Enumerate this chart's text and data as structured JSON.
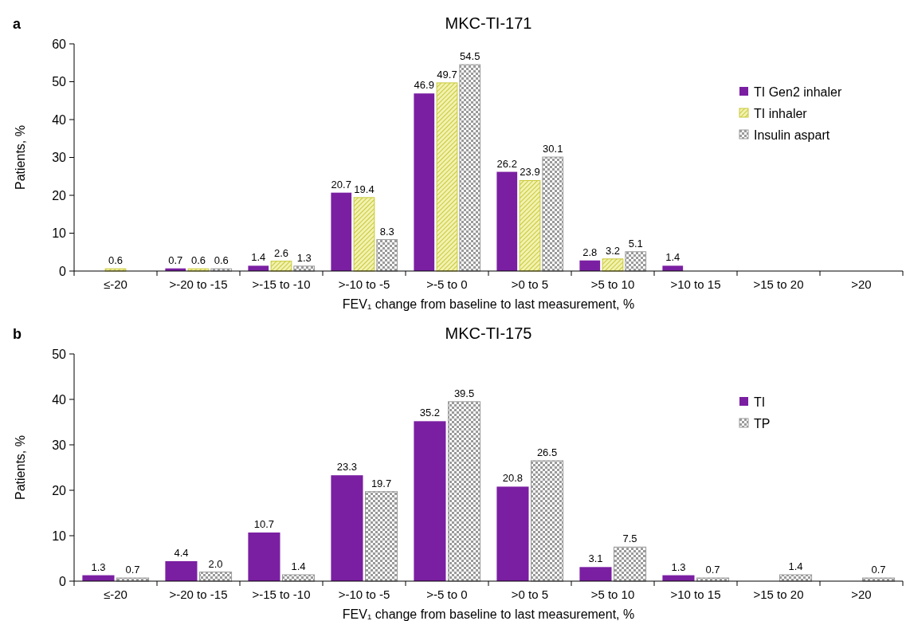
{
  "chart_data": [
    {
      "type": "bar",
      "title": "MKC-TI-171",
      "xlabel": "FEV₁ change from baseline to last measurement, %",
      "ylabel": "Patients, %",
      "annotations": [
        "a"
      ],
      "categories": [
        "≤-20",
        ">-20 to -15",
        ">-15 to -10",
        ">-10 to -5",
        ">-5 to 0",
        ">0 to 5",
        ">5 to 10",
        ">10 to 15",
        ">15 to 20",
        ">20"
      ],
      "ylim": [
        0,
        60
      ],
      "yticks": [
        0,
        10,
        20,
        30,
        40,
        50,
        60
      ],
      "grid": false,
      "legend": "top right",
      "data_labels": true,
      "series": [
        {
          "name": "TI Gen2 inhaler",
          "color": "#7a1fa2",
          "values": [
            null,
            0.7,
            1.4,
            20.7,
            46.9,
            26.2,
            2.8,
            1.4,
            null,
            null
          ]
        },
        {
          "name": "TI inhaler",
          "color": "#c9c83a",
          "values": [
            0.6,
            0.6,
            2.6,
            19.4,
            49.7,
            23.9,
            3.2,
            null,
            null,
            null
          ]
        },
        {
          "name": "Insulin aspart",
          "color": "#9a9a9a",
          "values": [
            null,
            0.6,
            1.3,
            8.3,
            54.5,
            30.1,
            5.1,
            null,
            null,
            null
          ]
        }
      ]
    },
    {
      "type": "bar",
      "title": "MKC-TI-175",
      "xlabel": "FEV₁ change from baseline to last measurement, %",
      "ylabel": "Patients, %",
      "annotations": [
        "b"
      ],
      "categories": [
        "≤-20",
        ">-20 to -15",
        ">-15 to -10",
        ">-10 to -5",
        ">-5 to 0",
        ">0 to 5",
        ">5 to 10",
        ">10 to 15",
        ">15 to 20",
        ">20"
      ],
      "ylim": [
        0,
        50
      ],
      "yticks": [
        0,
        10,
        20,
        30,
        40,
        50
      ],
      "grid": false,
      "legend": "top right",
      "data_labels": true,
      "series": [
        {
          "name": "TI",
          "color": "#7a1fa2",
          "values": [
            1.3,
            4.4,
            10.7,
            23.3,
            35.2,
            20.8,
            3.1,
            1.3,
            null,
            null
          ]
        },
        {
          "name": "TP",
          "color": "#9a9a9a",
          "values": [
            0.7,
            2.0,
            1.4,
            19.7,
            39.5,
            26.5,
            7.5,
            0.7,
            1.4,
            0.7
          ],
          "value_labels": [
            "0.7",
            "2.0",
            "1.4",
            "19.7",
            "39.5",
            "26.5",
            "7.5",
            "0.7",
            "1.4",
            "0.7"
          ]
        }
      ]
    }
  ]
}
